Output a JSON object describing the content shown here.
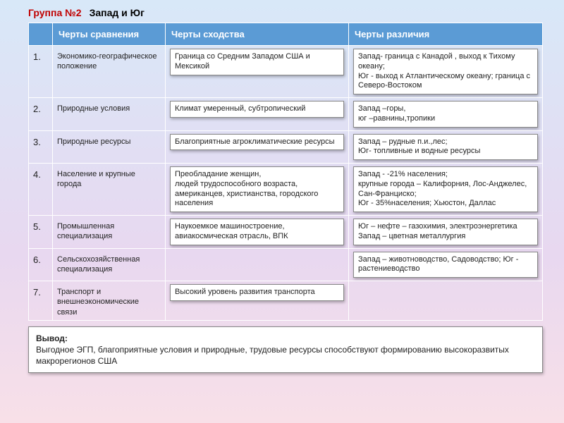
{
  "title": {
    "group": "Группа №2",
    "topic": "Запад и Юг"
  },
  "headers": {
    "blank": "",
    "traits": "Черты сравнения",
    "sim": "Черты   сходства",
    "diff": "Черты различия"
  },
  "rows": [
    {
      "n": "1.",
      "trait": "Экономико-географическое положение",
      "sim": "Граница со Средним Западом  США и Мексикой",
      "diff": "Запад- граница с Канадой , выход к Тихому океану;\nЮг - выход к Атлантическому океану; граница с Северо-Востоком"
    },
    {
      "n": "2.",
      "trait": "Природные условия",
      "sim": "Климат умеренный, субтропический",
      "diff": "Запад –горы,\nюг –равнины,тропики"
    },
    {
      "n": "3.",
      "trait": "Природные ресурсы",
      "sim": "Благоприятные агроклиматические ресурсы",
      "diff": "Запад –  рудные п.и.,лес;\nЮг- топливные и  водные ресурсы"
    },
    {
      "n": "4.",
      "trait": "Население и крупные города",
      "sim": "Преобладание женщин,\nлюдей трудоспособного возраста, американцев, христианства, городского населения",
      "diff": "Запад -  -21% населения;\nкрупные города – Калифорния, Лос-Анджелес, Сан-Франциско;\nЮг -  35%населения; Хьюстон, Даллас"
    },
    {
      "n": "5.",
      "trait": "Промышленная специализация",
      "sim": "Наукоемкое машиностроение, авиакосмическая отрасль, ВПК",
      "diff": "Юг – нефте – газохимия, электроэнергетика\nЗапад – цветная металлургия"
    },
    {
      "n": "6.",
      "trait": "Сельскохозяйственная специализация",
      "sim": "",
      "diff": "Запад – животноводство, Садоводство; Юг - растениеводство"
    },
    {
      "n": "7.",
      "trait": "Транспорт и внешнеэкономические связи",
      "sim": "Высокий уровень развития транспорта",
      "diff": ""
    }
  ],
  "conclusion": {
    "label": "Вывод:",
    "text": "Выгодное ЭГП, благоприятные условия и природные, трудовые ресурсы способствуют  формированию высокоразвитых макрорегионов США"
  }
}
